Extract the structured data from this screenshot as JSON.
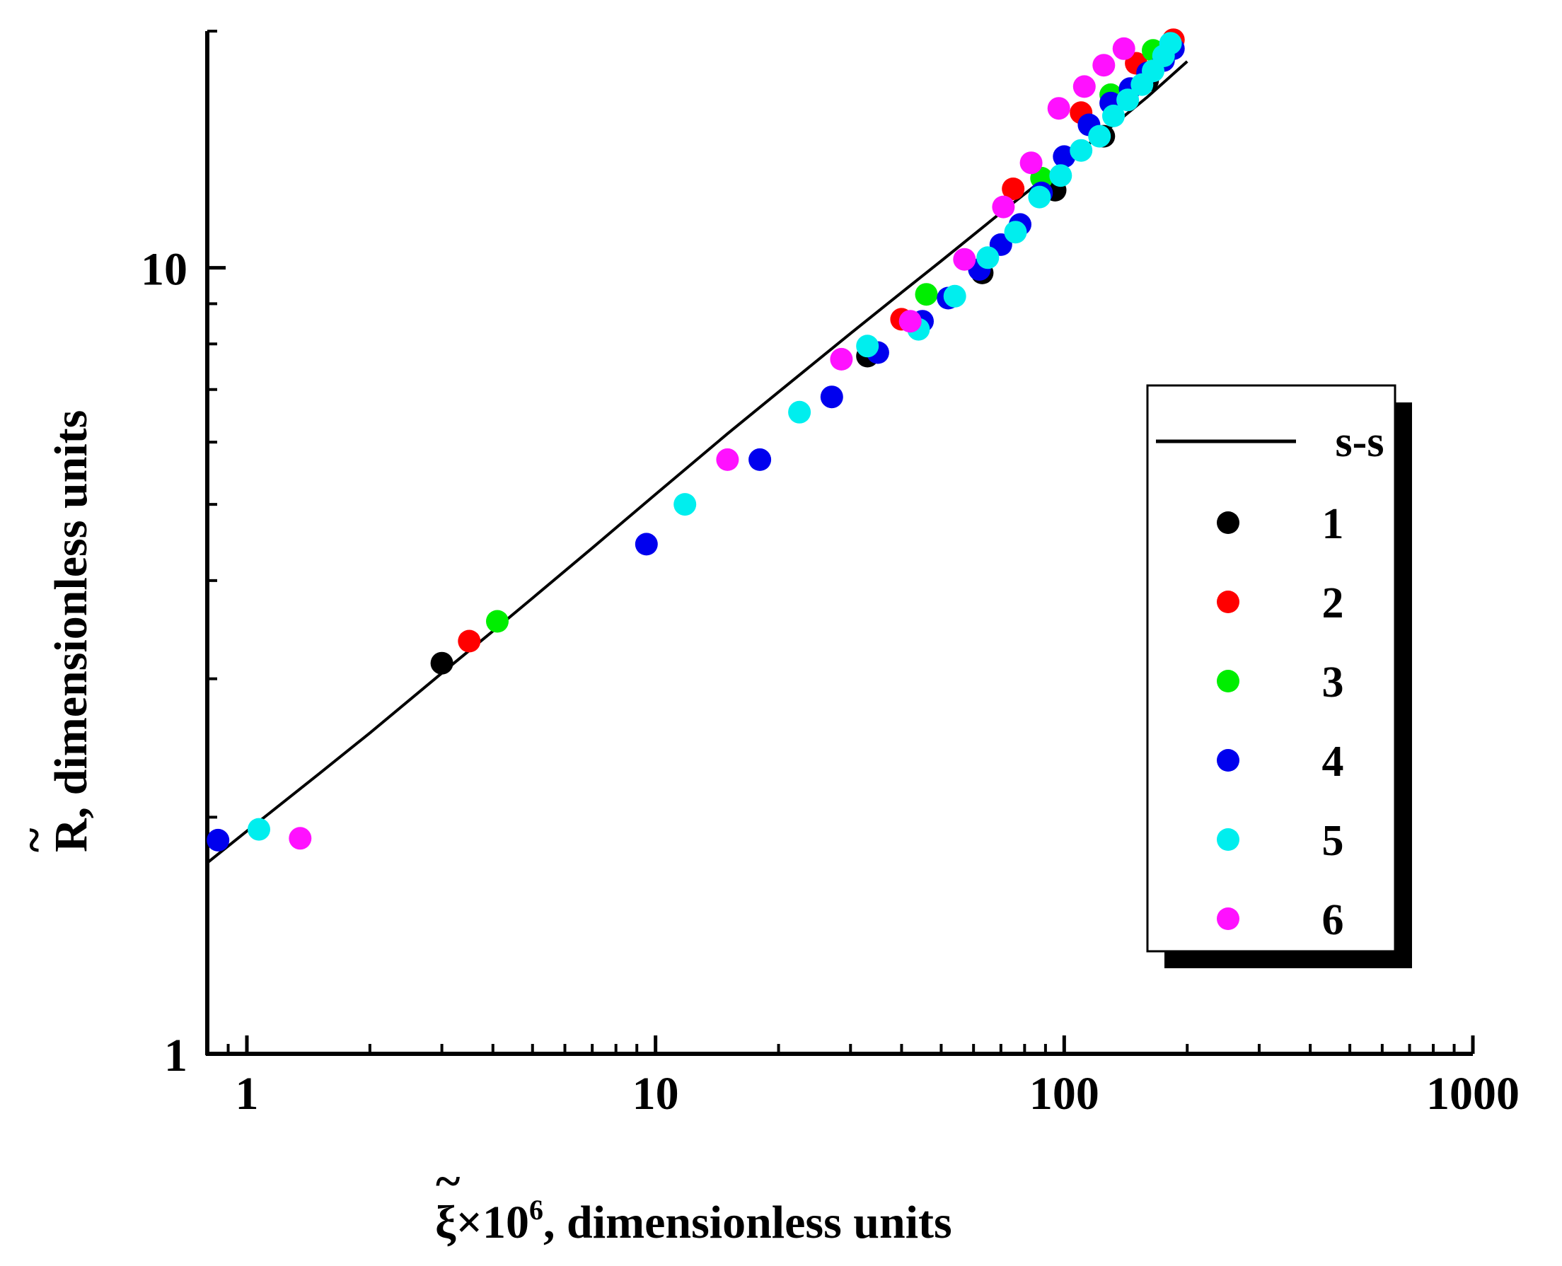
{
  "chart_data": {
    "type": "scatter",
    "title": "",
    "x_scale": "log",
    "y_scale": "log",
    "xlim": [
      0.8,
      1000
    ],
    "ylim": [
      1,
      20
    ],
    "grid": false,
    "legend_position": "right",
    "xlabel": {
      "symbol": "ξ",
      "accent": "~",
      "multiplier": "×10",
      "exponent": "6",
      "text": ", dimensionless units"
    },
    "ylabel": {
      "symbol": "R",
      "accent": "~",
      "text": ", dimensionless units"
    },
    "x_ticks": [
      {
        "value": 1,
        "label": "1"
      },
      {
        "value": 10,
        "label": "10"
      },
      {
        "value": 100,
        "label": "100"
      },
      {
        "value": 1000,
        "label": "1000"
      }
    ],
    "y_ticks": [
      {
        "value": 1,
        "label": "1"
      },
      {
        "value": 10,
        "label": "10"
      }
    ],
    "fit_line": {
      "name": "s-s",
      "color": "#000000",
      "x": [
        0.8,
        1,
        1.5,
        2,
        3,
        4,
        5,
        7,
        10,
        15,
        20,
        30,
        40,
        50,
        70,
        100,
        130,
        160,
        200
      ],
      "y": [
        1.75,
        1.92,
        2.27,
        2.56,
        3.05,
        3.45,
        3.8,
        4.4,
        5.15,
        6.15,
        6.95,
        8.25,
        9.3,
        10.2,
        11.75,
        13.6,
        15.1,
        16.5,
        18.3
      ]
    },
    "series": [
      {
        "name": "1",
        "color": "#000000",
        "x": [
          3.0,
          33,
          63,
          95,
          125,
          160
        ],
        "y": [
          3.14,
          7.72,
          9.85,
          12.55,
          14.7,
          17.3
        ]
      },
      {
        "name": "2",
        "color": "#ff0000",
        "x": [
          3.5,
          40,
          75,
          110,
          150,
          185
        ],
        "y": [
          3.35,
          8.6,
          12.6,
          15.75,
          18.2,
          19.5
        ]
      },
      {
        "name": "3",
        "color": "#00ee00",
        "x": [
          4.1,
          46,
          88,
          130,
          165
        ],
        "y": [
          3.55,
          9.25,
          13.0,
          16.6,
          18.9
        ]
      },
      {
        "name": "4",
        "color": "#0000ee",
        "x": [
          0.85,
          9.5,
          18,
          27,
          35,
          45,
          52,
          62,
          70,
          78,
          88,
          100,
          115,
          130,
          145,
          160,
          175,
          185
        ],
        "y": [
          1.87,
          4.45,
          5.7,
          6.85,
          7.8,
          8.55,
          9.15,
          9.95,
          10.7,
          11.35,
          12.45,
          13.85,
          15.2,
          16.2,
          16.9,
          17.7,
          18.35,
          19.0
        ]
      },
      {
        "name": "5",
        "color": "#00eeee",
        "x": [
          1.07,
          11.8,
          22.5,
          33,
          44,
          54,
          65,
          76,
          87,
          98,
          110,
          122,
          132,
          143,
          155,
          165,
          175,
          182
        ],
        "y": [
          1.93,
          5.0,
          6.55,
          7.95,
          8.35,
          9.2,
          10.3,
          11.1,
          12.3,
          13.1,
          14.1,
          14.7,
          15.6,
          16.35,
          17.1,
          17.8,
          18.6,
          19.3
        ]
      },
      {
        "name": "6",
        "color": "#ff11ff",
        "x": [
          1.35,
          15,
          28.5,
          42,
          57,
          71,
          83,
          97,
          112,
          125,
          140
        ],
        "y": [
          1.88,
          5.7,
          7.65,
          8.55,
          10.25,
          11.95,
          13.6,
          15.95,
          17.0,
          18.1,
          19.0
        ]
      }
    ]
  },
  "legend": {
    "items": [
      "s-s",
      "1",
      "2",
      "3",
      "4",
      "5",
      "6"
    ]
  }
}
